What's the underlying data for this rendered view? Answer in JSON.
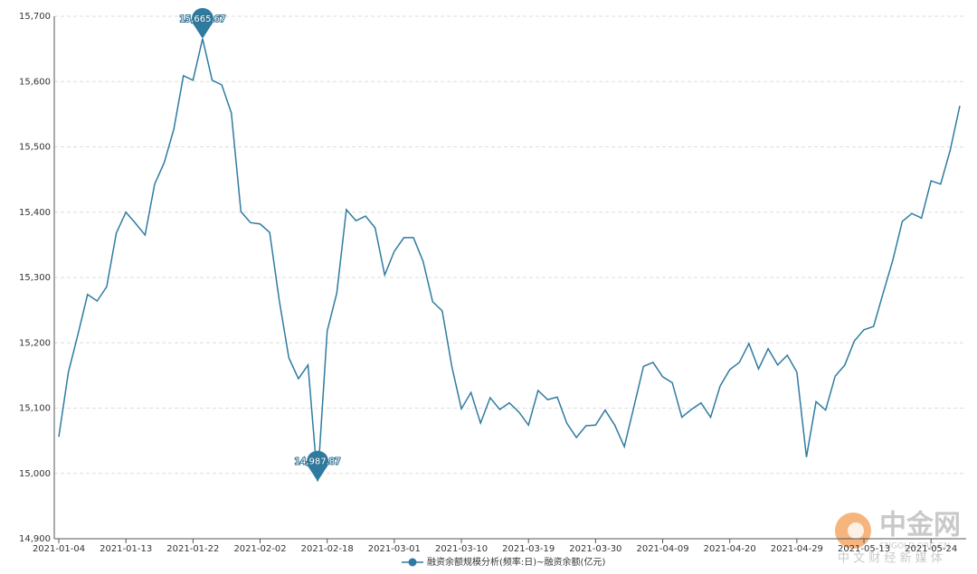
{
  "chart_data": {
    "type": "line",
    "categories": [
      "2021-01-04",
      null,
      null,
      null,
      null,
      null,
      null,
      "2021-01-13",
      null,
      null,
      null,
      null,
      null,
      null,
      "2021-01-22",
      null,
      null,
      null,
      null,
      null,
      null,
      "2021-02-02",
      null,
      null,
      null,
      null,
      null,
      null,
      "2021-02-18",
      null,
      null,
      null,
      null,
      null,
      null,
      "2021-03-01",
      null,
      null,
      null,
      null,
      null,
      null,
      "2021-03-10",
      null,
      null,
      null,
      null,
      null,
      null,
      "2021-03-19",
      null,
      null,
      null,
      null,
      null,
      null,
      "2021-03-30",
      null,
      null,
      null,
      null,
      null,
      null,
      "2021-04-09",
      null,
      null,
      null,
      null,
      null,
      null,
      "2021-04-20",
      null,
      null,
      null,
      null,
      null,
      null,
      "2021-04-29",
      null,
      null,
      null,
      null,
      null,
      null,
      "2021-05-13",
      null,
      null,
      null,
      null,
      null,
      null,
      "2021-05-24",
      null,
      null,
      null
    ],
    "series": [
      {
        "name": "融资余额规模分析(频率:日)~融资余额(亿元)",
        "color": "#2f7ba0",
        "values": [
          15056,
          15155,
          15213,
          15274,
          15264,
          15286,
          15368,
          15400,
          15383,
          15365,
          15443,
          15476,
          15527,
          15609,
          15602,
          15665.67,
          15602,
          15595,
          15552,
          15401,
          15384,
          15382,
          15369,
          15265,
          15177,
          15145,
          15166,
          14987.87,
          15218,
          15276,
          15404,
          15387,
          15394,
          15376,
          15304,
          15340,
          15361,
          15361,
          15325,
          15263,
          15249,
          15164,
          15099,
          15124,
          15077,
          15116,
          15098,
          15108,
          15094,
          15074,
          15127,
          15113,
          15117,
          15077,
          15055,
          15073,
          15074,
          15097,
          15074,
          15041,
          15102,
          15164,
          15170,
          15148,
          15139,
          15086,
          15098,
          15108,
          15086,
          15134,
          15159,
          15170,
          15199,
          15160,
          15191,
          15166,
          15181,
          15155,
          15025,
          15110,
          15097,
          15149,
          15166,
          15203,
          15220,
          15225,
          15276,
          15326,
          15386,
          15398,
          15391,
          15448,
          15443,
          15495,
          15563
        ],
        "value_labels": [
          null,
          null,
          null,
          null,
          null,
          null,
          null,
          null,
          null,
          null,
          null,
          null,
          null,
          null,
          null,
          "15,665.67",
          null,
          null,
          null,
          null,
          null,
          null,
          null,
          null,
          null,
          null,
          null,
          "14,987.87",
          null,
          null,
          null,
          null,
          null,
          null,
          null,
          null,
          null,
          null,
          null,
          null,
          null,
          null,
          null,
          null,
          null,
          null,
          null,
          null,
          null,
          null,
          null,
          null,
          null,
          null,
          null,
          null,
          null,
          null,
          null,
          null,
          null,
          null,
          null,
          null,
          null,
          null,
          null,
          null,
          null,
          null,
          null,
          null,
          null,
          null,
          null,
          null,
          null,
          null,
          null,
          null,
          null,
          null,
          null,
          null,
          null,
          null,
          null,
          null,
          null,
          null,
          null,
          null,
          null,
          null,
          null
        ]
      }
    ],
    "ylim": [
      14900,
      15700
    ],
    "yticks": [
      {
        "value": 14900,
        "label": "14,900"
      },
      {
        "value": 15000,
        "label": "15,000"
      },
      {
        "value": 15100,
        "label": "15,100"
      },
      {
        "value": 15200,
        "label": "15,200"
      },
      {
        "value": 15300,
        "label": "15,300"
      },
      {
        "value": 15400,
        "label": "15,400"
      },
      {
        "value": 15500,
        "label": "15,500"
      },
      {
        "value": 15600,
        "label": "15,600"
      },
      {
        "value": 15700,
        "label": "15,700"
      }
    ],
    "grid": true,
    "watermark": {
      "logo": "中金网",
      "site": "CNGOLD.ORG.CN",
      "slogan": "中 文 财 经 新 媒 体"
    }
  }
}
